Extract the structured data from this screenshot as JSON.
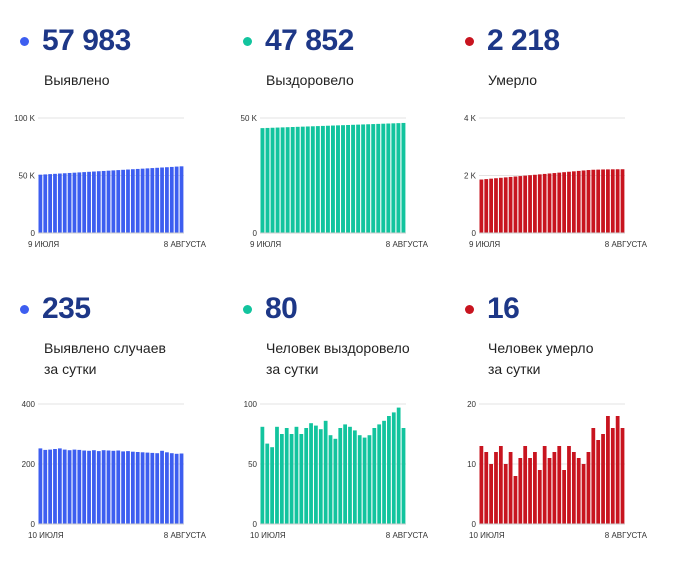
{
  "colors": {
    "blue": "#3d5ef0",
    "green": "#12c49e",
    "red": "#c8141f",
    "number": "#1d3787"
  },
  "panels": [
    {
      "id": "detected-total",
      "number": "57 983",
      "label_lines": [
        "Выявлено"
      ],
      "color_key": "blue",
      "chart_data": {
        "type": "bar",
        "xlabel": "",
        "ylabel": "",
        "x_labels": [
          "9 ИЮЛЯ",
          "8 АВГУСТА"
        ],
        "y_ticks": [
          {
            "value": 0,
            "label": "0"
          },
          {
            "value": 50000,
            "label": "50 K"
          },
          {
            "value": 100000,
            "label": "100 K"
          }
        ],
        "ylim": [
          0,
          100000
        ],
        "values": [
          50700,
          50950,
          51200,
          51450,
          51700,
          51950,
          52200,
          52450,
          52700,
          52950,
          53200,
          53450,
          53700,
          53950,
          54200,
          54450,
          54700,
          54950,
          55200,
          55450,
          55700,
          55950,
          56200,
          56450,
          56700,
          56950,
          57200,
          57450,
          57750,
          57983
        ]
      }
    },
    {
      "id": "recovered-total",
      "number": "47 852",
      "label_lines": [
        "Выздоровело"
      ],
      "color_key": "green",
      "chart_data": {
        "type": "bar",
        "xlabel": "",
        "ylabel": "",
        "x_labels": [
          "9 ИЮЛЯ",
          "8 АВГУСТА"
        ],
        "y_ticks": [
          {
            "value": 0,
            "label": "0"
          },
          {
            "value": 50000,
            "label": "50 K"
          }
        ],
        "ylim": [
          0,
          50000
        ],
        "values": [
          45600,
          45680,
          45760,
          45840,
          45920,
          46000,
          46080,
          46160,
          46240,
          46320,
          46400,
          46480,
          46560,
          46640,
          46720,
          46800,
          46880,
          46960,
          47040,
          47120,
          47200,
          47280,
          47360,
          47440,
          47520,
          47600,
          47680,
          47760,
          47852
        ]
      }
    },
    {
      "id": "deaths-total",
      "number": "2 218",
      "label_lines": [
        "Умерло"
      ],
      "color_key": "red",
      "chart_data": {
        "type": "bar",
        "xlabel": "",
        "ylabel": "",
        "x_labels": [
          "9 ИЮЛЯ",
          "8 АВГУСТА"
        ],
        "y_ticks": [
          {
            "value": 0,
            "label": "0"
          },
          {
            "value": 2000,
            "label": "2 K"
          },
          {
            "value": 4000,
            "label": "4 K"
          }
        ],
        "ylim": [
          0,
          4000
        ],
        "values": [
          1860,
          1875,
          1890,
          1905,
          1920,
          1935,
          1950,
          1965,
          1980,
          1995,
          2010,
          2025,
          2040,
          2055,
          2070,
          2085,
          2100,
          2115,
          2130,
          2145,
          2160,
          2175,
          2190,
          2200,
          2205,
          2210,
          2213,
          2215,
          2217,
          2218
        ]
      }
    },
    {
      "id": "detected-daily",
      "number": "235",
      "label_lines": [
        "Выявлено случаев",
        "за сутки"
      ],
      "color_key": "blue",
      "chart_data": {
        "type": "bar",
        "xlabel": "",
        "ylabel": "",
        "x_labels": [
          "10 ИЮЛЯ",
          "8 АВГУСТА"
        ],
        "y_ticks": [
          {
            "value": 0,
            "label": "0"
          },
          {
            "value": 200,
            "label": "200"
          },
          {
            "value": 400,
            "label": "400"
          }
        ],
        "ylim": [
          0,
          400
        ],
        "values": [
          252,
          247,
          248,
          250,
          252,
          248,
          246,
          248,
          247,
          245,
          244,
          246,
          243,
          246,
          245,
          244,
          245,
          242,
          243,
          241,
          240,
          239,
          238,
          237,
          236,
          244,
          239,
          236,
          234,
          235
        ]
      }
    },
    {
      "id": "recovered-daily",
      "number": "80",
      "label_lines": [
        "Человек выздоровело",
        "за сутки"
      ],
      "color_key": "green",
      "chart_data": {
        "type": "bar",
        "xlabel": "",
        "ylabel": "",
        "x_labels": [
          "10 ИЮЛЯ",
          "8 АВГУСТА"
        ],
        "y_ticks": [
          {
            "value": 0,
            "label": "0"
          },
          {
            "value": 50,
            "label": "50"
          },
          {
            "value": 100,
            "label": "100"
          }
        ],
        "ylim": [
          0,
          100
        ],
        "values": [
          81,
          67,
          64,
          81,
          75,
          80,
          75,
          81,
          75,
          80,
          84,
          82,
          79,
          86,
          74,
          71,
          80,
          83,
          81,
          78,
          74,
          72,
          74,
          80,
          83,
          86,
          90,
          93,
          97,
          80
        ]
      }
    },
    {
      "id": "deaths-daily",
      "number": "16",
      "label_lines": [
        "Человек умерло",
        "за сутки"
      ],
      "color_key": "red",
      "chart_data": {
        "type": "bar",
        "xlabel": "",
        "ylabel": "",
        "x_labels": [
          "10 ИЮЛЯ",
          "8 АВГУСТА"
        ],
        "y_ticks": [
          {
            "value": 0,
            "label": "0"
          },
          {
            "value": 10,
            "label": "10"
          },
          {
            "value": 20,
            "label": "20"
          }
        ],
        "ylim": [
          0,
          20
        ],
        "values": [
          13,
          12,
          10,
          12,
          13,
          10,
          12,
          8,
          11,
          13,
          11,
          12,
          9,
          13,
          11,
          12,
          13,
          9,
          13,
          12,
          11,
          10,
          12,
          16,
          14,
          15,
          18,
          16,
          18,
          16
        ]
      }
    }
  ]
}
